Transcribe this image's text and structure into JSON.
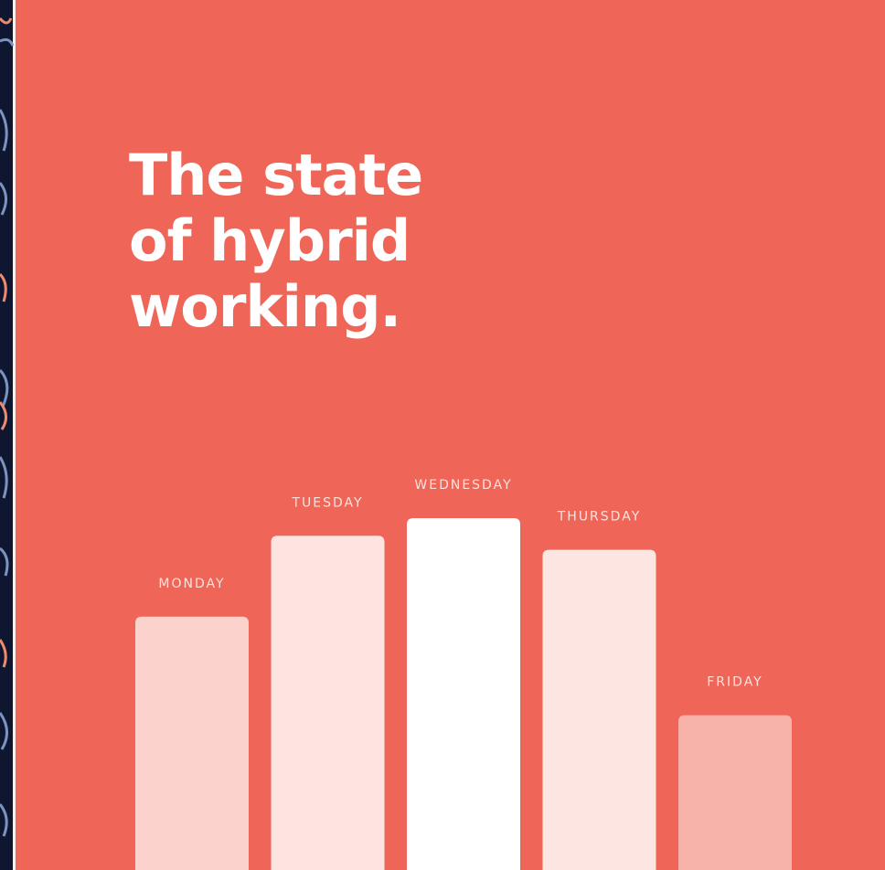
{
  "chart_data": {
    "type": "bar",
    "title_lines": [
      "The state",
      "of hybrid",
      "working."
    ],
    "categories": [
      "MONDAY",
      "TUESDAY",
      "WEDNESDAY",
      "THURSDAY",
      "FRIDAY"
    ],
    "values": [
      72,
      95,
      100,
      91,
      44
    ],
    "colors": [
      "#fbd2cc",
      "#fde4e0",
      "#ffffff",
      "#fde5e1",
      "#f7b2a9"
    ]
  }
}
